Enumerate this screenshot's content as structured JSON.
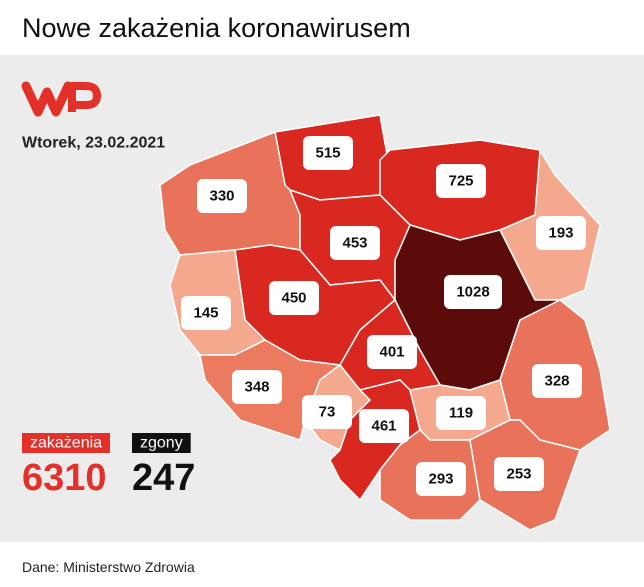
{
  "header": {
    "title": "Nowe zakażenia koronawirusem"
  },
  "date": "Wtorek, 23.02.2021",
  "regions": [
    {
      "value": 515,
      "color": "#d8281f"
    },
    {
      "value": 725,
      "color": "#d8281f"
    },
    {
      "value": 330,
      "color": "#e8735a"
    },
    {
      "value": 193,
      "color": "#f4a98f"
    },
    {
      "value": 453,
      "color": "#d8281f"
    },
    {
      "value": 1028,
      "color": "#5c0b0b"
    },
    {
      "value": 450,
      "color": "#d8281f"
    },
    {
      "value": 145,
      "color": "#f4a98f"
    },
    {
      "value": 401,
      "color": "#d8281f"
    },
    {
      "value": 328,
      "color": "#e8735a"
    },
    {
      "value": 348,
      "color": "#ec7a5e"
    },
    {
      "value": 73,
      "color": "#f4a98f"
    },
    {
      "value": 461,
      "color": "#d8281f"
    },
    {
      "value": 119,
      "color": "#f4a98f"
    },
    {
      "value": 293,
      "color": "#e8735a"
    },
    {
      "value": 253,
      "color": "#e8735a"
    }
  ],
  "totals": [
    {
      "label": "zakażenia",
      "value": 6310,
      "color": "#e3312a"
    },
    {
      "label": "zgony",
      "value": 247,
      "color": "#111111"
    }
  ],
  "source": "Dane: Ministerstwo Zdrowia"
}
